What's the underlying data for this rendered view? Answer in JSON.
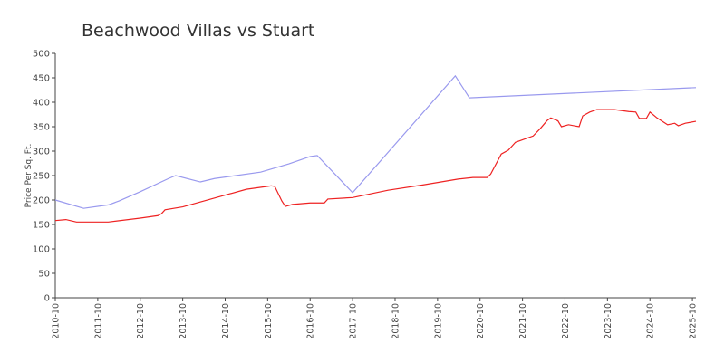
{
  "chart_data": {
    "type": "line",
    "title": "Beachwood Villas vs Stuart",
    "ylabel": "Price Per Sq. Ft.",
    "xlim": [
      "2010-10",
      "2025-11"
    ],
    "xticks": [
      "2010-10",
      "2011-10",
      "2012-10",
      "2013-10",
      "2014-10",
      "2015-10",
      "2016-10",
      "2017-10",
      "2018-10",
      "2019-10",
      "2020-10",
      "2021-10",
      "2022-10",
      "2023-10",
      "2024-10",
      "2025-10"
    ],
    "ylim": [
      0,
      500
    ],
    "yticks": [
      0,
      50,
      100,
      150,
      200,
      250,
      300,
      350,
      400,
      450,
      500
    ],
    "series": [
      {
        "color": "#9999ee",
        "x": [
          "2010-10",
          "2011-06",
          "2012-01",
          "2012-04",
          "2012-10",
          "2013-06",
          "2013-08",
          "2014-03",
          "2014-07",
          "2015-08",
          "2016-04",
          "2016-10",
          "2016-12",
          "2017-10",
          "2020-03",
          "2020-07",
          "2025-11"
        ],
        "values": [
          200,
          183,
          190,
          198,
          217,
          244,
          250,
          237,
          244,
          257,
          274,
          289,
          291,
          215,
          454,
          409,
          430
        ]
      },
      {
        "color": "#ee2222",
        "x": [
          "2010-10",
          "2011-01",
          "2011-04",
          "2012-01",
          "2012-10",
          "2013-03",
          "2013-04",
          "2013-05",
          "2013-10",
          "2014-04",
          "2014-10",
          "2015-04",
          "2015-10",
          "2015-11",
          "2015-12",
          "2016-02",
          "2016-03",
          "2016-05",
          "2016-10",
          "2017-02",
          "2017-03",
          "2017-10",
          "2018-08",
          "2019-06",
          "2020-04",
          "2020-08",
          "2020-12",
          "2021-01",
          "2021-04",
          "2021-06",
          "2021-08",
          "2022-01",
          "2022-03",
          "2022-05",
          "2022-06",
          "2022-08",
          "2022-09",
          "2022-11",
          "2023-02",
          "2023-03",
          "2023-05",
          "2023-07",
          "2023-12",
          "2024-04",
          "2024-06",
          "2024-07",
          "2024-09",
          "2024-10",
          "2024-12",
          "2025-03",
          "2025-05",
          "2025-06",
          "2025-08",
          "2025-11"
        ],
        "values": [
          158,
          160,
          155,
          155,
          163,
          168,
          172,
          180,
          186,
          198,
          210,
          222,
          228,
          229,
          228,
          198,
          187,
          191,
          194,
          194,
          202,
          205,
          220,
          231,
          243,
          246,
          246,
          253,
          294,
          302,
          318,
          331,
          346,
          363,
          368,
          362,
          350,
          354,
          350,
          372,
          380,
          385,
          385,
          381,
          380,
          367,
          367,
          380,
          368,
          354,
          357,
          352,
          357,
          361
        ]
      }
    ]
  }
}
